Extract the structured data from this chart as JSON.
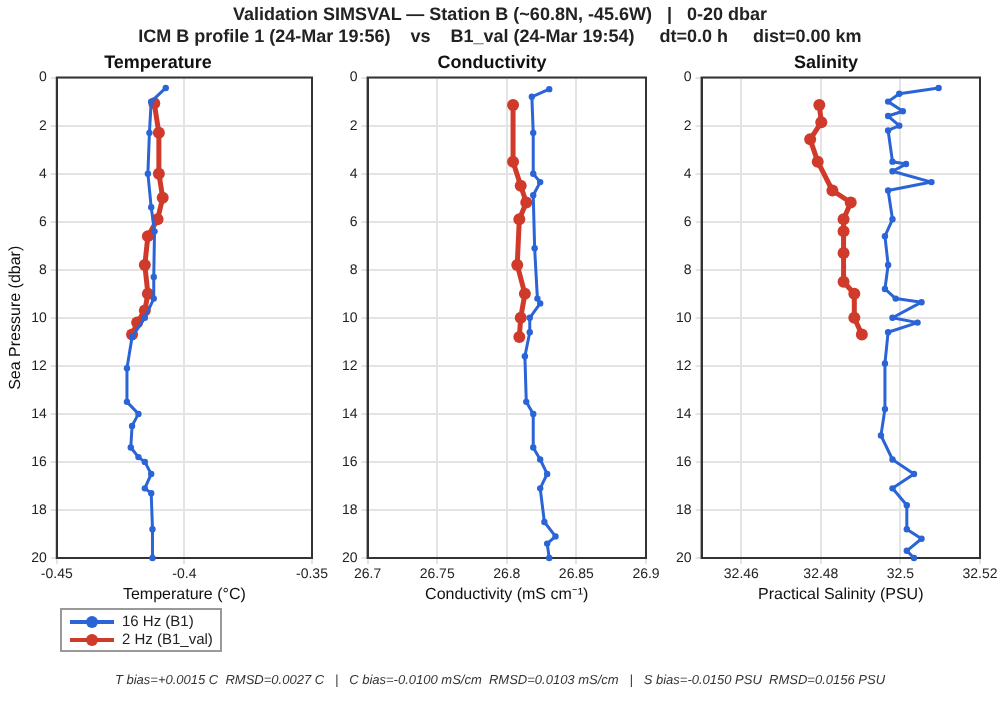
{
  "chart_data": [
    {
      "type": "line",
      "title": "Temperature",
      "xlabel": "Temperature (°C)",
      "ylabel": "Sea Pressure (dbar)",
      "xlim": [
        -0.45,
        -0.35
      ],
      "xticks": [
        -0.45,
        -0.4,
        -0.35
      ],
      "ylim": [
        20,
        0
      ],
      "yticks": [
        0,
        2,
        4,
        6,
        8,
        10,
        12,
        14,
        16,
        18,
        20
      ],
      "grid": true,
      "legend": "bottom",
      "marker": "circle",
      "line_style": "solid",
      "annotations": [
        "Validation SIMSVAL — Station B (~60.8N, -45.6W)   |   0-20 dbar",
        "ICM B profile 1 (24-Mar 19:56)    vs    B1_val (24-Mar 19:54)     dt=0.0 h     dist=0.00 km"
      ],
      "series": [
        {
          "name": "16 Hz (B1)",
          "color": "#2a64d6",
          "x": [
            -0.4073,
            -0.413,
            -0.4137,
            -0.4143,
            -0.413,
            -0.4117,
            -0.412,
            -0.412,
            -0.4155,
            -0.4205,
            -0.4225,
            -0.4225,
            -0.418,
            -0.4205,
            -0.421,
            -0.418,
            -0.4155,
            -0.413,
            -0.4155,
            -0.413,
            -0.4125,
            -0.4125
          ],
          "values": [
            0.43,
            1.0,
            2.3,
            4.0,
            5.4,
            6.4,
            8.3,
            9.2,
            10.0,
            10.8,
            12.1,
            13.5,
            14.0,
            14.5,
            15.4,
            15.8,
            16.0,
            16.5,
            17.1,
            17.3,
            18.8,
            20.0
          ]
        },
        {
          "name": "2 Hz (B1_val)",
          "color": "#d03a2a",
          "x": [
            -0.4118,
            -0.41,
            -0.41,
            -0.4085,
            -0.4105,
            -0.4143,
            -0.4155,
            -0.4143,
            -0.4155,
            -0.4185,
            -0.4205
          ],
          "values": [
            1.07,
            2.3,
            4.0,
            5.0,
            5.9,
            6.6,
            7.8,
            9.0,
            9.7,
            10.2,
            10.7
          ]
        }
      ]
    },
    {
      "type": "line",
      "title": "Conductivity",
      "xlabel": "Conductivity (mS cm⁻¹)",
      "xlim": [
        26.7,
        26.9
      ],
      "xticks": [
        26.7,
        26.75,
        26.8,
        26.85,
        26.9
      ],
      "ylim": [
        20,
        0
      ],
      "yticks": [
        0,
        2,
        4,
        6,
        8,
        10,
        12,
        14,
        16,
        18,
        20
      ],
      "grid": true,
      "marker": "circle",
      "line_style": "solid",
      "annotations": [
        "T bias=+0.0015 C  RMSD=0.0027 C   |   C bias=-0.0100 mS/cm  RMSD=0.0103 mS/cm   |   S bias=-0.0150 PSU  RMSD=0.0156 PSU"
      ],
      "series": [
        {
          "color": "#2a64d6",
          "x": [
            26.8305,
            26.818,
            26.819,
            26.819,
            26.824,
            26.819,
            26.82,
            26.822,
            26.824,
            26.8165,
            26.8165,
            26.813,
            26.814,
            26.819,
            26.819,
            26.824,
            26.829,
            26.824,
            26.827,
            26.835,
            26.829,
            26.8305
          ],
          "values": [
            0.48,
            0.8,
            2.3,
            4.0,
            4.35,
            4.9,
            7.1,
            9.2,
            9.4,
            10.0,
            10.6,
            11.6,
            13.5,
            14.0,
            15.4,
            15.9,
            16.5,
            17.1,
            18.5,
            19.1,
            19.4,
            20.0
          ]
        },
        {
          "color": "#d03a2a",
          "x": [
            26.8045,
            26.8045,
            26.81,
            26.814,
            26.809,
            26.8075,
            26.813,
            26.81,
            26.809
          ],
          "values": [
            1.14,
            3.5,
            4.5,
            5.2,
            5.9,
            7.8,
            9.0,
            10.0,
            10.8
          ]
        }
      ]
    },
    {
      "type": "line",
      "title": "Salinity",
      "xlabel": "Practical Salinity (PSU)",
      "xlim": [
        32.45,
        32.52
      ],
      "xticks": [
        32.46,
        32.48,
        32.5,
        32.52
      ],
      "ylim": [
        20,
        0
      ],
      "yticks": [
        0,
        2,
        4,
        6,
        8,
        10,
        12,
        14,
        16,
        18,
        20
      ],
      "grid": true,
      "marker": "circle",
      "line_style": "solid",
      "series": [
        {
          "color": "#2a64d6",
          "x": [
            32.5096,
            32.4997,
            32.4969,
            32.5006,
            32.4969,
            32.4997,
            32.4969,
            32.498,
            32.5014,
            32.498,
            32.5078,
            32.4969,
            32.498,
            32.4961,
            32.4969,
            32.4961,
            32.4988,
            32.5053,
            32.498,
            32.5043,
            32.4969,
            32.4961,
            32.4961,
            32.4951,
            32.498,
            32.5034,
            32.498,
            32.5016,
            32.5016,
            32.5053,
            32.5016,
            32.5034
          ],
          "values": [
            0.43,
            0.67,
            1.0,
            1.4,
            1.6,
            2.0,
            2.2,
            3.5,
            3.6,
            3.9,
            4.35,
            4.7,
            5.9,
            6.6,
            7.8,
            8.8,
            9.2,
            9.35,
            10.0,
            10.2,
            10.6,
            11.9,
            13.8,
            14.9,
            15.9,
            16.5,
            17.1,
            17.8,
            18.8,
            19.2,
            19.7,
            20.0
          ]
        },
        {
          "color": "#d03a2a",
          "x": [
            32.4796,
            32.4801,
            32.4773,
            32.4792,
            32.4829,
            32.4875,
            32.4857,
            32.4857,
            32.4857,
            32.4857,
            32.4884,
            32.4884,
            32.4903
          ],
          "values": [
            1.14,
            1.86,
            2.57,
            3.5,
            4.7,
            5.2,
            5.9,
            6.4,
            7.3,
            8.5,
            9.0,
            10.0,
            10.7
          ]
        }
      ]
    }
  ]
}
